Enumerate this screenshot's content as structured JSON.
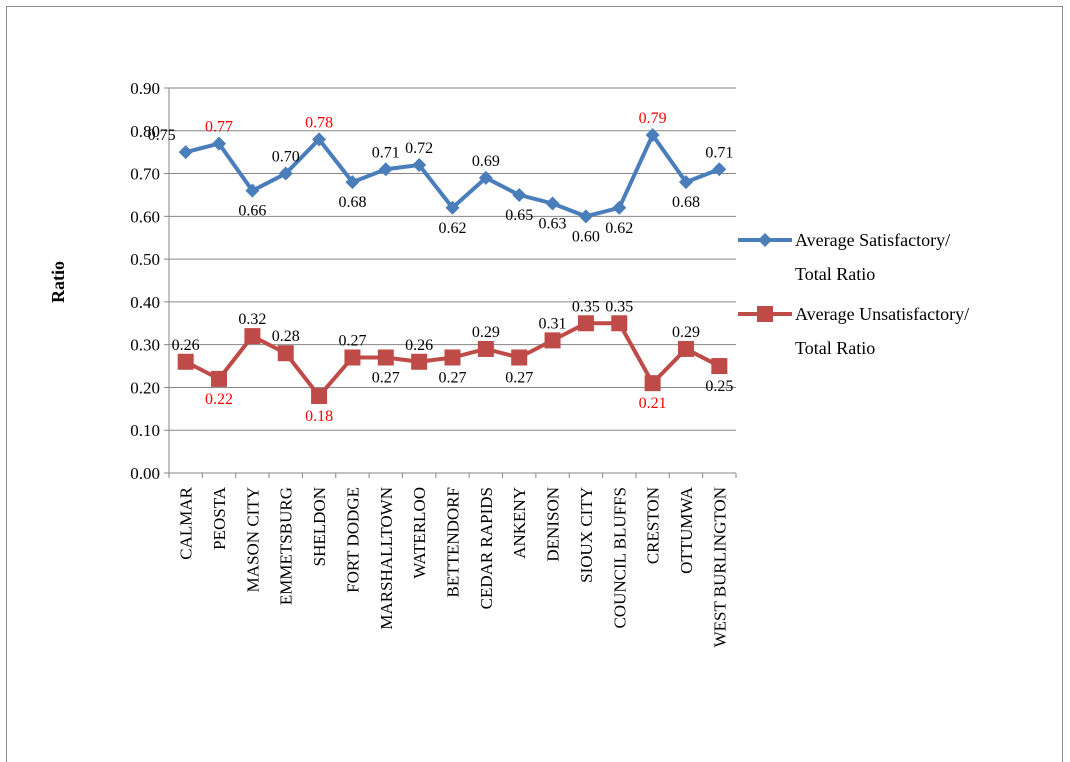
{
  "chart_data": {
    "type": "line",
    "title": "",
    "xlabel": "",
    "ylabel": "Ratio",
    "ylim": [
      0,
      0.9
    ],
    "y_ticks": [
      "0.00",
      "0.10",
      "0.20",
      "0.30",
      "0.40",
      "0.50",
      "0.60",
      "0.70",
      "0.80",
      "0.90"
    ],
    "grid": true,
    "legend_position": "right",
    "categories": [
      "CALMAR",
      "PEOSTA",
      "MASON CITY",
      "EMMETSBURG",
      "SHELDON",
      "FORT DODGE",
      "MARSHALLTOWN",
      "WATERLOO",
      "BETTENDORF",
      "CEDAR RAPIDS",
      "ANKENY",
      "DENISON",
      "SIOUX CITY",
      "COUNCIL BLUFFS",
      "CRESTON",
      "OTTUMWA",
      "WEST BURLINGTON"
    ],
    "series": [
      {
        "name": "Average Satisfactory/ Total Ratio",
        "legend_lines": [
          "Average Satisfactory/",
          "Total Ratio"
        ],
        "color": "#4a7ebb",
        "marker": "diamond",
        "values": [
          0.75,
          0.77,
          0.66,
          0.7,
          0.78,
          0.68,
          0.71,
          0.72,
          0.62,
          0.69,
          0.65,
          0.63,
          0.6,
          0.62,
          0.79,
          0.68,
          0.71
        ],
        "labels": [
          "0.75",
          "0.77",
          "0.66",
          "0.70",
          "0.78",
          "0.68",
          "0.71",
          "0.72",
          "0.62",
          "0.69",
          "0.65",
          "0.63",
          "0.60",
          "0.62",
          "0.79",
          "0.68",
          "0.71"
        ],
        "label_position": [
          "left",
          "above",
          "below",
          "above",
          "above",
          "below",
          "above",
          "above",
          "below",
          "above",
          "below",
          "below",
          "below",
          "below",
          "above",
          "below",
          "above"
        ],
        "label_highlight": [
          false,
          true,
          false,
          false,
          true,
          false,
          false,
          false,
          false,
          false,
          false,
          false,
          false,
          false,
          true,
          false,
          false
        ]
      },
      {
        "name": "Average Unsatisfactory/ Total Ratio",
        "legend_lines": [
          "Average Unsatisfactory/",
          "Total Ratio"
        ],
        "color": "#be4b48",
        "marker": "square",
        "values": [
          0.26,
          0.22,
          0.32,
          0.28,
          0.18,
          0.27,
          0.27,
          0.26,
          0.27,
          0.29,
          0.27,
          0.31,
          0.35,
          0.35,
          0.21,
          0.29,
          0.25
        ],
        "labels": [
          "0.26",
          "0.22",
          "0.32",
          "0.28",
          "0.18",
          "0.27",
          "0.27",
          "0.26",
          "0.27",
          "0.29",
          "0.27",
          "0.31",
          "0.35",
          "0.35",
          "0.21",
          "0.29",
          "0.25"
        ],
        "label_position": [
          "above",
          "below",
          "above",
          "above",
          "below",
          "above",
          "below",
          "above",
          "below",
          "above",
          "below",
          "above",
          "above",
          "above",
          "below",
          "above",
          "below"
        ],
        "label_highlight": [
          false,
          true,
          false,
          false,
          true,
          false,
          false,
          false,
          false,
          false,
          false,
          false,
          false,
          false,
          true,
          false,
          false
        ]
      }
    ],
    "highlight_label_color": "#ff0000",
    "label_color": "#000000",
    "grid_color": "#868686"
  }
}
